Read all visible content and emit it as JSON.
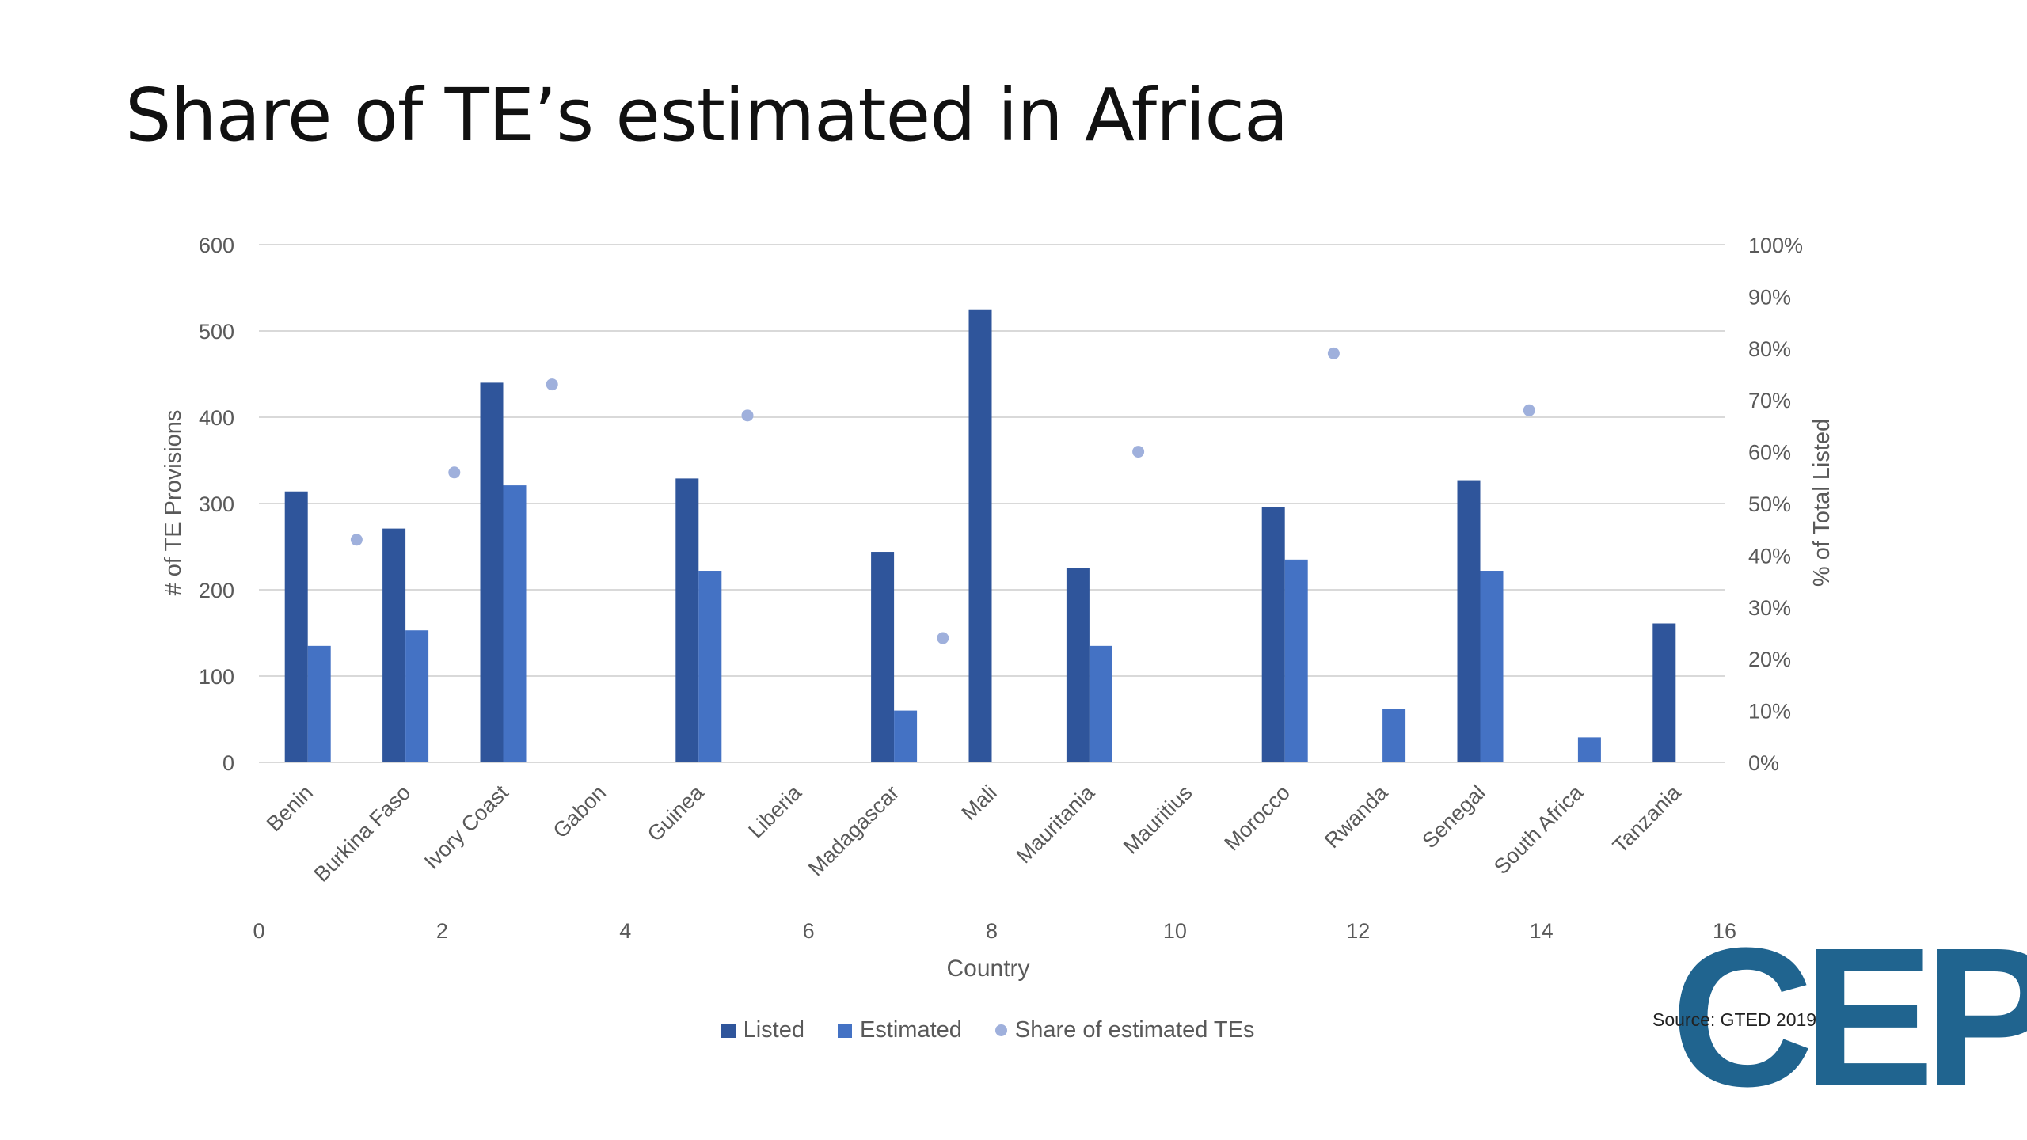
{
  "slide": {
    "title": "Share of TE’s estimated in Africa",
    "source": "Source: GTED 2019",
    "logo_text": "CEP",
    "logo_color": "#20648f"
  },
  "colors": {
    "listed": "#2f559b",
    "estimated": "#4472c4",
    "share": "#9fb0dc",
    "grid": "#d9d9d9",
    "tick_text": "#595959"
  },
  "chart_data": {
    "type": "bar",
    "ylabel": "# of TE Provisions",
    "y2label": "% of Total Listed",
    "xlabel": "Country",
    "ylim": [
      0,
      600
    ],
    "yticks": [
      "0",
      "100",
      "200",
      "300",
      "400",
      "500",
      "600"
    ],
    "y2lim": [
      0,
      100
    ],
    "y2ticks": [
      "0%",
      "10%",
      "20%",
      "30%",
      "40%",
      "50%",
      "60%",
      "70%",
      "80%",
      "90%",
      "100%"
    ],
    "xlim": [
      0,
      16
    ],
    "xticks": [
      "0",
      "2",
      "4",
      "6",
      "8",
      "10",
      "12",
      "14",
      "16"
    ],
    "categories": [
      "Benin",
      "Burkina Faso",
      "Ivory Coast",
      "Gabon",
      "Guinea",
      "Liberia",
      "Madagascar",
      "Mali",
      "Mauritania",
      "Mauritius",
      "Morocco",
      "Rwanda",
      "Senegal",
      "South Africa",
      "Tanzania"
    ],
    "legend_position": "bottom",
    "grid": true,
    "series": [
      {
        "name": "Listed",
        "type": "bar",
        "axis": "left",
        "values": [
          314,
          271,
          440,
          null,
          329,
          null,
          244,
          525,
          225,
          null,
          296,
          null,
          327,
          null,
          161
        ]
      },
      {
        "name": "Estimated",
        "type": "bar",
        "axis": "left",
        "values": [
          135,
          153,
          321,
          null,
          222,
          null,
          60,
          null,
          135,
          null,
          235,
          62,
          222,
          29,
          null
        ]
      },
      {
        "name": "Share of estimated TEs",
        "type": "scatter",
        "axis": "right",
        "values": [
          43,
          56,
          73,
          null,
          67,
          null,
          24,
          null,
          60,
          null,
          79,
          null,
          68,
          null,
          null
        ]
      }
    ]
  }
}
